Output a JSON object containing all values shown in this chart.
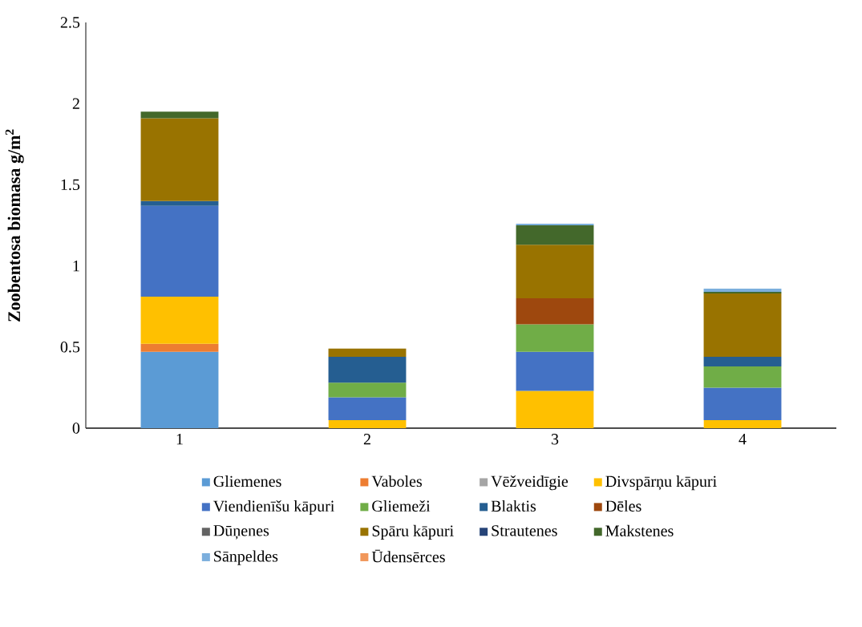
{
  "chart_data": {
    "type": "bar",
    "stacked": true,
    "ylabel": "Zoobentosa biomasa g/m$^{2}$",
    "categories": [
      "1",
      "2",
      "3",
      "4"
    ],
    "ylim": [
      0,
      2.5
    ],
    "yticks": [
      0,
      0.5,
      1,
      1.5,
      2,
      2.5
    ],
    "legend": "bottom",
    "series": [
      {
        "name": "Gliemenes",
        "color": "#5b9bd5",
        "values": [
          0.47,
          null,
          null,
          null
        ]
      },
      {
        "name": "Vaboles",
        "color": "#ed7d31",
        "values": [
          0.05,
          null,
          null,
          null
        ]
      },
      {
        "name": "Vēžveidīgie",
        "color": "#a5a5a5",
        "values": [
          null,
          null,
          null,
          null
        ]
      },
      {
        "name": "Divspārņu kāpuri",
        "color": "#ffc000",
        "values": [
          0.29,
          0.05,
          0.23,
          0.05
        ]
      },
      {
        "name": "Viendienīšu kāpuri",
        "color": "#4472c4",
        "values": [
          0.56,
          0.14,
          0.24,
          0.2
        ]
      },
      {
        "name": "Gliemeži",
        "color": "#70ad47",
        "values": [
          null,
          0.09,
          0.17,
          0.13
        ]
      },
      {
        "name": "Blaktis",
        "color": "#255e91",
        "values": [
          0.03,
          0.16,
          null,
          0.06
        ]
      },
      {
        "name": "Dēles",
        "color": "#9e480e",
        "values": [
          null,
          null,
          0.16,
          null
        ]
      },
      {
        "name": "Dūņenes",
        "color": "#636363",
        "values": [
          null,
          null,
          null,
          null
        ]
      },
      {
        "name": "Spāru kāpuri",
        "color": "#997300",
        "values": [
          0.51,
          0.05,
          0.33,
          0.39
        ]
      },
      {
        "name": "Strautenes",
        "color": "#264478",
        "values": [
          null,
          null,
          null,
          null
        ]
      },
      {
        "name": "Makstenes",
        "color": "#43682b",
        "values": [
          0.04,
          null,
          0.12,
          0.01
        ]
      },
      {
        "name": "Sānpeldes",
        "color": "#7cafdd",
        "values": [
          null,
          null,
          0.01,
          0.02
        ]
      },
      {
        "name": "Ūdensērces",
        "color": "#f1975a",
        "values": [
          null,
          null,
          null,
          null
        ]
      }
    ]
  }
}
